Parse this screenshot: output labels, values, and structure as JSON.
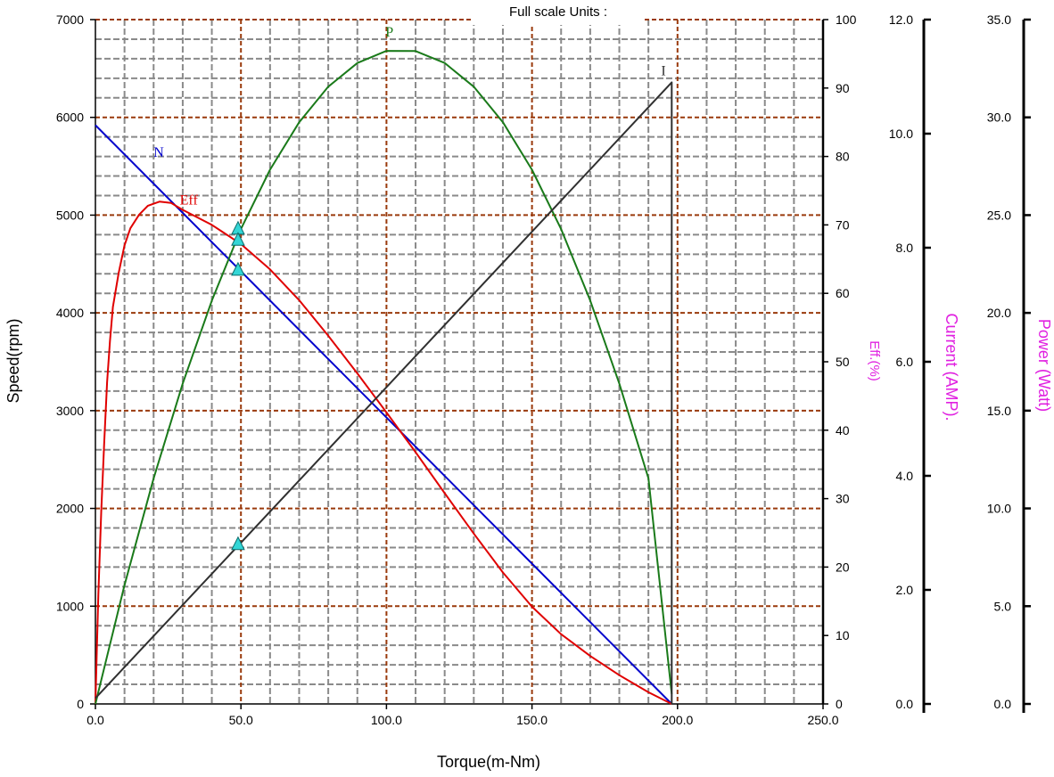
{
  "chart_data": {
    "type": "line",
    "title": "Full scale  Units :",
    "xlabel": "Torque(m-Nm)",
    "xlim": [
      0,
      250
    ],
    "x_ticks": [
      "0.0",
      "50.0",
      "100.0",
      "150.0",
      "200.0",
      "250.0"
    ],
    "grid": true,
    "axes": {
      "speed": {
        "label": "Speed(rpm)",
        "range": [
          0,
          7000
        ],
        "ticks": [
          "0",
          "1000",
          "2000",
          "3000",
          "4000",
          "5000",
          "6000",
          "7000"
        ],
        "color": "#000000"
      },
      "eff": {
        "label": "Eff.(%)",
        "range": [
          0,
          100
        ],
        "ticks": [
          "0",
          "10",
          "20",
          "30",
          "40",
          "50",
          "60",
          "70",
          "80",
          "90",
          "100"
        ],
        "color": "#e020e0"
      },
      "current": {
        "label": "Current (AMP).",
        "range": [
          0,
          12
        ],
        "ticks": [
          "0.0",
          "2.0",
          "4.0",
          "6.0",
          "8.0",
          "10.0",
          "12.0"
        ],
        "color": "#e020e0"
      },
      "power": {
        "label": "Power (Watt)",
        "range": [
          0,
          35
        ],
        "ticks": [
          "0.0",
          "5.0",
          "10.0",
          "15.0",
          "20.0",
          "25.0",
          "30.0",
          "35.0"
        ],
        "color": "#e020e0"
      }
    },
    "series": [
      {
        "name": "N",
        "axis": "speed",
        "color": "#0000cc",
        "points": [
          [
            0,
            5920
          ],
          [
            198,
            0
          ]
        ]
      },
      {
        "name": "Eff",
        "axis": "eff",
        "color": "#e00000",
        "points": [
          [
            0,
            0
          ],
          [
            0.5,
            8
          ],
          [
            1,
            16
          ],
          [
            2,
            28
          ],
          [
            3,
            38
          ],
          [
            4,
            47
          ],
          [
            5,
            53
          ],
          [
            6,
            58
          ],
          [
            8,
            63
          ],
          [
            10,
            67
          ],
          [
            12,
            69.5
          ],
          [
            15,
            71.5
          ],
          [
            18,
            72.8
          ],
          [
            22,
            73.4
          ],
          [
            26,
            73.2
          ],
          [
            30,
            72.2
          ],
          [
            40,
            70
          ],
          [
            50,
            67.2
          ],
          [
            60,
            63.5
          ],
          [
            70,
            59
          ],
          [
            80,
            53.8
          ],
          [
            90,
            48.3
          ],
          [
            100,
            42.6
          ],
          [
            110,
            36.8
          ],
          [
            120,
            30.8
          ],
          [
            130,
            24.9
          ],
          [
            140,
            19.2
          ],
          [
            150,
            14.2
          ],
          [
            160,
            10.2
          ],
          [
            170,
            7
          ],
          [
            180,
            4.2
          ],
          [
            190,
            1.7
          ],
          [
            198,
            0
          ]
        ]
      },
      {
        "name": "P",
        "axis": "power",
        "color": "#1a7a1a",
        "points": [
          [
            0,
            0
          ],
          [
            10,
            6.07
          ],
          [
            20,
            11.54
          ],
          [
            30,
            16.39
          ],
          [
            40,
            20.63
          ],
          [
            50,
            24.29
          ],
          [
            60,
            27.32
          ],
          [
            70,
            29.75
          ],
          [
            80,
            31.57
          ],
          [
            90,
            32.78
          ],
          [
            100,
            33.4
          ],
          [
            110,
            33.39
          ],
          [
            120,
            32.78
          ],
          [
            130,
            31.57
          ],
          [
            140,
            29.75
          ],
          [
            150,
            27.32
          ],
          [
            160,
            24.29
          ],
          [
            170,
            20.63
          ],
          [
            180,
            16.39
          ],
          [
            190,
            11.54
          ],
          [
            198,
            0.5
          ]
        ]
      },
      {
        "name": "I",
        "axis": "current",
        "color": "#303030",
        "points": [
          [
            0,
            0.1
          ],
          [
            198,
            10.9
          ],
          [
            198,
            0
          ]
        ]
      }
    ],
    "markers": [
      {
        "series": "P",
        "x": 49,
        "value": 24.3
      },
      {
        "series": "Eff",
        "x": 49,
        "value": 67.8
      },
      {
        "series": "N",
        "x": 49,
        "value": 4440
      },
      {
        "series": "I",
        "x": 49,
        "value": 2.8
      }
    ],
    "marker_color": "#33d6d6"
  }
}
